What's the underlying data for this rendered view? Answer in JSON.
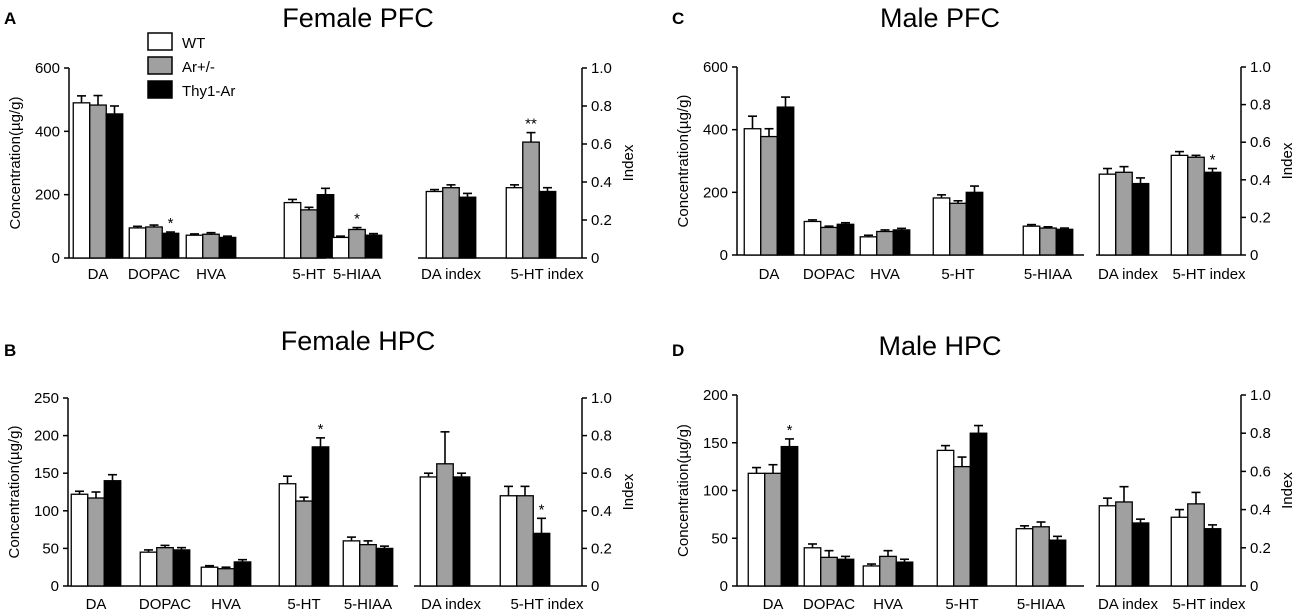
{
  "figure": {
    "legend": [
      {
        "label": "WT",
        "fill": "#ffffff"
      },
      {
        "label": "Ar+/-",
        "fill": "#a0a0a0"
      },
      {
        "label": "Thy1-Ar",
        "fill": "#000000"
      }
    ]
  },
  "chart_data": [
    {
      "panel": "A",
      "title": "Female PFC",
      "type": "bar",
      "series_names": [
        "WT",
        "Ar+/-",
        "Thy1-Ar"
      ],
      "left": {
        "ylabel": "Concentration(µg/g)",
        "ylim": [
          0,
          600
        ],
        "yticks": [
          0,
          200,
          400,
          600
        ],
        "categories": [
          "DA",
          "DOPAC",
          "HVA",
          "5-HT",
          "5-HIAA"
        ],
        "values": [
          [
            490,
            483,
            455
          ],
          [
            95,
            98,
            78
          ],
          [
            72,
            75,
            65
          ],
          [
            175,
            152,
            200
          ],
          [
            65,
            90,
            72
          ]
        ],
        "errors": [
          [
            22,
            30,
            25
          ],
          [
            5,
            6,
            4
          ],
          [
            4,
            5,
            4
          ],
          [
            10,
            8,
            20
          ],
          [
            4,
            6,
            5
          ]
        ],
        "stars": [
          "",
          "*",
          "",
          "",
          "*"
        ],
        "star_series": [
          2,
          2,
          2,
          2,
          1
        ]
      },
      "right": {
        "ylabel": "Index",
        "ylim": [
          0,
          1.0
        ],
        "yticks": [
          "0",
          "0.2",
          "0.4",
          "0.6",
          "0.8",
          "1.0"
        ],
        "categories": [
          "DA index",
          "5-HT index"
        ],
        "values": [
          [
            0.35,
            0.37,
            0.32
          ],
          [
            0.37,
            0.61,
            0.35
          ]
        ],
        "errors": [
          [
            0.01,
            0.015,
            0.02
          ],
          [
            0.015,
            0.05,
            0.02
          ]
        ],
        "stars": [
          "",
          "**"
        ],
        "star_series": [
          1,
          1
        ]
      }
    },
    {
      "panel": "C",
      "title": "Male PFC",
      "type": "bar",
      "series_names": [
        "WT",
        "Ar+/-",
        "Thy1-Ar"
      ],
      "left": {
        "ylabel": "Concentration(µg/g)",
        "ylim": [
          0,
          600
        ],
        "yticks": [
          0,
          200,
          400,
          600
        ],
        "categories": [
          "DA",
          "DOPAC",
          "HVA",
          "5-HT",
          "5-HIAA"
        ],
        "values": [
          [
            403,
            378,
            472
          ],
          [
            107,
            88,
            98
          ],
          [
            58,
            75,
            80
          ],
          [
            182,
            165,
            200
          ],
          [
            92,
            86,
            82
          ]
        ],
        "errors": [
          [
            40,
            25,
            32
          ],
          [
            5,
            4,
            5
          ],
          [
            5,
            5,
            5
          ],
          [
            10,
            8,
            20
          ],
          [
            5,
            4,
            4
          ]
        ],
        "stars": [
          "",
          "",
          "",
          "",
          ""
        ],
        "star_series": [
          2,
          2,
          2,
          2,
          2
        ]
      },
      "right": {
        "ylabel": "Index",
        "ylim": [
          0,
          1.0
        ],
        "yticks": [
          "0",
          "0.2",
          "0.4",
          "0.6",
          "0.8",
          "1.0"
        ],
        "categories": [
          "DA index",
          "5-HT index"
        ],
        "values": [
          [
            0.43,
            0.44,
            0.38
          ],
          [
            0.53,
            0.52,
            0.44
          ]
        ],
        "errors": [
          [
            0.03,
            0.03,
            0.03
          ],
          [
            0.02,
            0.01,
            0.02
          ]
        ],
        "stars": [
          "",
          "*"
        ],
        "star_series": [
          2,
          2
        ]
      }
    },
    {
      "panel": "B",
      "title": "Female HPC",
      "type": "bar",
      "series_names": [
        "WT",
        "Ar+/-",
        "Thy1-Ar"
      ],
      "left": {
        "ylabel": "Concentration(µg/g)",
        "ylim": [
          0,
          250
        ],
        "yticks": [
          0,
          50,
          100,
          150,
          200,
          250
        ],
        "categories": [
          "DA",
          "DOPAC",
          "HVA",
          "5-HT",
          "5-HIAA"
        ],
        "values": [
          [
            122,
            117,
            140
          ],
          [
            45,
            51,
            48
          ],
          [
            25,
            23,
            32
          ],
          [
            136,
            113,
            185
          ],
          [
            60,
            55,
            50
          ]
        ],
        "errors": [
          [
            4,
            8,
            8
          ],
          [
            3,
            3,
            3
          ],
          [
            2,
            2,
            3
          ],
          [
            10,
            5,
            12
          ],
          [
            5,
            5,
            3
          ]
        ],
        "stars": [
          "",
          "",
          "",
          "*",
          ""
        ],
        "star_series": [
          2,
          2,
          2,
          2,
          2
        ]
      },
      "right": {
        "ylabel": "Index",
        "ylim": [
          0,
          1.0
        ],
        "yticks": [
          "0",
          "0.2",
          "0.4",
          "0.6",
          "0.8",
          "1.0"
        ],
        "categories": [
          "DA index",
          "5-HT index"
        ],
        "values": [
          [
            0.58,
            0.65,
            0.58
          ],
          [
            0.48,
            0.48,
            0.28
          ]
        ],
        "errors": [
          [
            0.02,
            0.17,
            0.02
          ],
          [
            0.05,
            0.05,
            0.08
          ]
        ],
        "stars": [
          "",
          "*"
        ],
        "star_series": [
          2,
          2
        ]
      }
    },
    {
      "panel": "D",
      "title": "Male HPC",
      "type": "bar",
      "series_names": [
        "WT",
        "Ar+/-",
        "Thy1-Ar"
      ],
      "left": {
        "ylabel": "Concentration(µg/g)",
        "ylim": [
          0,
          200
        ],
        "yticks": [
          0,
          50,
          100,
          150,
          200
        ],
        "categories": [
          "DA",
          "DOPAC",
          "HVA",
          "5-HT",
          "5-HIAA"
        ],
        "values": [
          [
            118,
            118,
            146
          ],
          [
            40,
            30,
            28
          ],
          [
            21,
            31,
            25
          ],
          [
            142,
            125,
            160
          ],
          [
            60,
            62,
            48
          ]
        ],
        "errors": [
          [
            6,
            9,
            8
          ],
          [
            4,
            7,
            3
          ],
          [
            2,
            6,
            3
          ],
          [
            5,
            10,
            8
          ],
          [
            3,
            5,
            4
          ]
        ],
        "stars": [
          "*",
          "",
          "",
          "",
          ""
        ],
        "star_series": [
          2,
          2,
          2,
          2,
          2
        ]
      },
      "right": {
        "ylabel": "Index",
        "ylim": [
          0,
          1.0
        ],
        "yticks": [
          "0",
          "0.2",
          "0.4",
          "0.6",
          "0.8",
          "1.0"
        ],
        "categories": [
          "DA index",
          "5-HT index"
        ],
        "values": [
          [
            0.42,
            0.44,
            0.33
          ],
          [
            0.36,
            0.43,
            0.3
          ]
        ],
        "errors": [
          [
            0.04,
            0.08,
            0.02
          ],
          [
            0.04,
            0.06,
            0.02
          ]
        ],
        "stars": [
          "",
          ""
        ],
        "star_series": [
          2,
          2
        ]
      }
    }
  ]
}
